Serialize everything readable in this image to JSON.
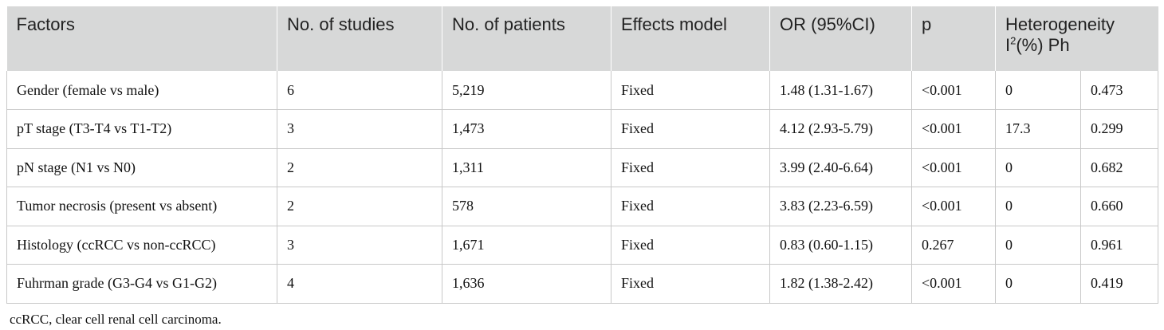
{
  "table": {
    "headers": [
      "Factors",
      "No. of studies",
      "No. of patients",
      "Effects model",
      "OR (95%CI)",
      "p"
    ],
    "heterogeneity": {
      "title": "Heterogeneity",
      "i2_prefix": "I",
      "i2_sup": "2",
      "i2_suffix": "(%) Ph"
    },
    "rows": [
      [
        "Gender (female vs male)",
        "6",
        "5,219",
        "Fixed",
        "1.48 (1.31-1.67)",
        "<0.001",
        "0",
        "0.473"
      ],
      [
        "pT stage (T3-T4 vs T1-T2)",
        "3",
        "1,473",
        "Fixed",
        "4.12 (2.93-5.79)",
        "<0.001",
        "17.3",
        "0.299"
      ],
      [
        "pN stage (N1 vs N0)",
        "2",
        "1,311",
        "Fixed",
        "3.99 (2.40-6.64)",
        "<0.001",
        "0",
        "0.682"
      ],
      [
        "Tumor necrosis (present vs absent)",
        "2",
        "578",
        "Fixed",
        "3.83 (2.23-6.59)",
        "<0.001",
        "0",
        "0.660"
      ],
      [
        "Histology (ccRCC vs non-ccRCC)",
        "3",
        "1,671",
        "Fixed",
        "0.83 (0.60-1.15)",
        "0.267",
        "0",
        "0.961"
      ],
      [
        "Fuhrman grade (G3-G4 vs G1-G2)",
        "4",
        "1,636",
        "Fixed",
        "1.82 (1.38-2.42)",
        "<0.001",
        "0",
        "0.419"
      ]
    ]
  },
  "footnote": "ccRCC, clear cell renal cell carcinoma."
}
